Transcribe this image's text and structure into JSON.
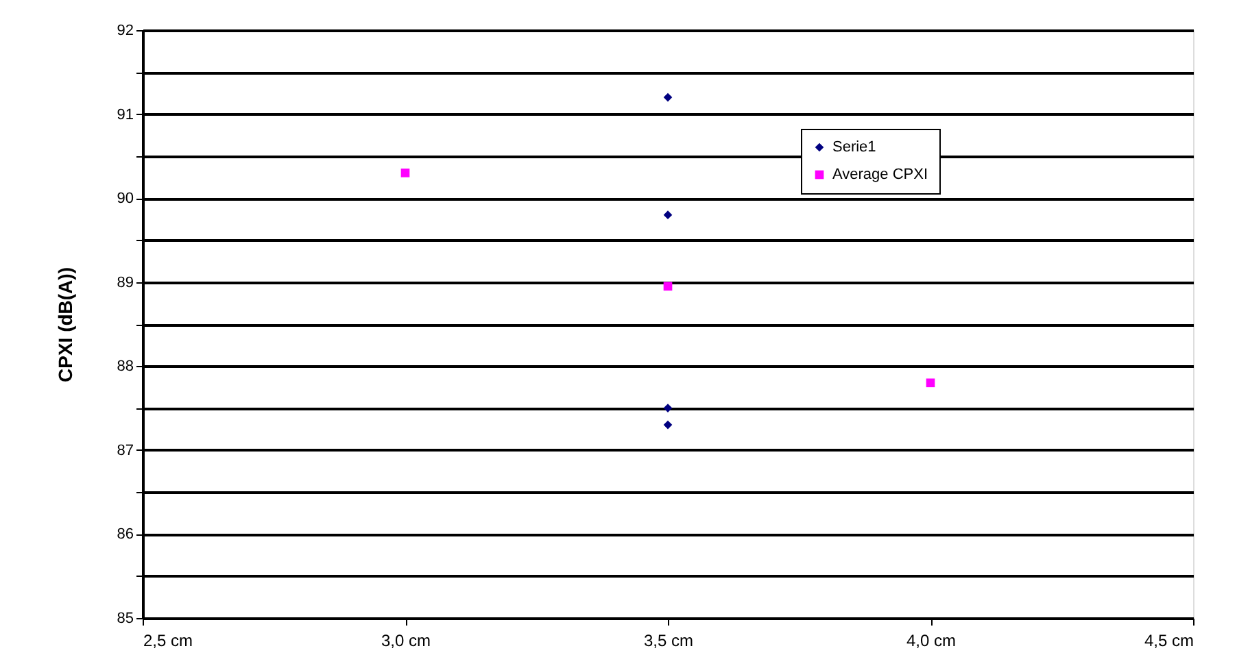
{
  "chart_data": {
    "type": "scatter",
    "ylabel": "CPXI (dB(A))",
    "xlim": [
      2.5,
      4.5
    ],
    "xticks": [
      {
        "value": 2.5,
        "label": "2,5 cm"
      },
      {
        "value": 3.0,
        "label": "3,0 cm"
      },
      {
        "value": 3.5,
        "label": "3,5 cm"
      },
      {
        "value": 4.0,
        "label": "4,0 cm"
      },
      {
        "value": 4.5,
        "label": "4,5 cm"
      }
    ],
    "ylim": [
      85,
      92
    ],
    "yticks": [
      85,
      {
        "value": 85.5,
        "label": null
      },
      86,
      {
        "value": 86.5,
        "label": null
      },
      87,
      {
        "value": 87.5,
        "label": null
      },
      88,
      {
        "value": 88.5,
        "label": null
      },
      89,
      {
        "value": 89.5,
        "label": null
      },
      90,
      {
        "value": 90.5,
        "label": null
      },
      91,
      {
        "value": 91.5,
        "label": null
      },
      92
    ],
    "grid": "y",
    "legend": "top right",
    "series": [
      {
        "name": "Serie1",
        "color": "#000080",
        "marker": "diamond",
        "x": [
          3.5,
          3.5,
          3.5,
          3.5
        ],
        "values": [
          91.2,
          89.8,
          87.5,
          87.3
        ]
      },
      {
        "name": "Average CPXI",
        "color": "#ff00ff",
        "marker": "square",
        "x": [
          3.0,
          3.5,
          4.0
        ],
        "values": [
          90.3,
          88.95,
          87.8
        ]
      }
    ]
  }
}
